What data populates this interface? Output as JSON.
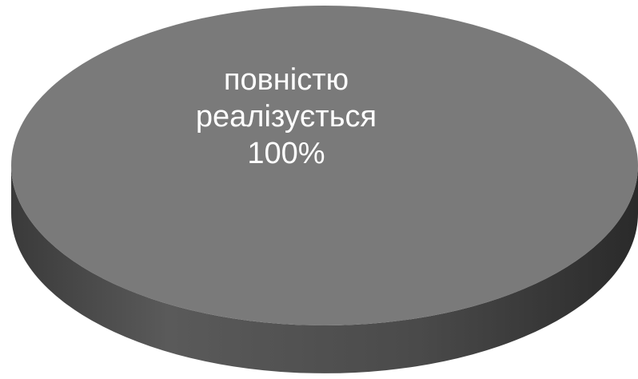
{
  "chart_data": {
    "type": "pie",
    "style": "3d",
    "slices": [
      {
        "name": "повністю реалізується",
        "name_lines": [
          "повністю",
          "реалізується"
        ],
        "value": 100,
        "label": "100%",
        "color": "#7a7a7a",
        "side_color": "#4a4a4a"
      }
    ],
    "legend": "none"
  }
}
